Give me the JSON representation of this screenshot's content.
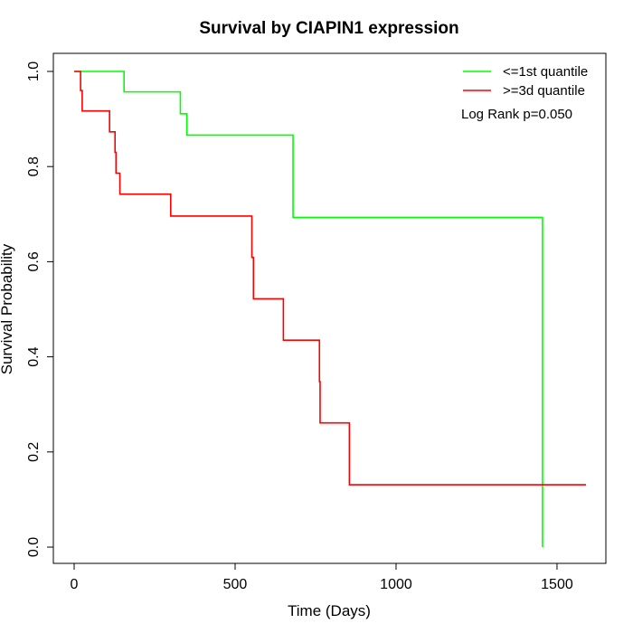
{
  "chart_data": {
    "type": "line",
    "title": "Survival by CIAPIN1 expression",
    "xlabel": "Time (Days)",
    "ylabel": "Survival Probability",
    "xlim": [
      0,
      1590
    ],
    "ylim": [
      0,
      1.0
    ],
    "x_ticks": [
      0,
      500,
      1000,
      1500
    ],
    "y_ticks": [
      0.0,
      0.2,
      0.4,
      0.6,
      0.8,
      1.0
    ],
    "x_tick_labels": [
      "0",
      "500",
      "1000",
      "1500"
    ],
    "y_tick_labels": [
      "0.0",
      "0.2",
      "0.4",
      "0.6",
      "0.8",
      "1.0"
    ],
    "grid": false,
    "legend_position": "top-right",
    "annotation": "Log Rank p=0.050",
    "series": [
      {
        "name": "<=1st quantile",
        "color": "#00ff00",
        "steps": [
          [
            0,
            1.0
          ],
          [
            155,
            0.957
          ],
          [
            330,
            0.911
          ],
          [
            350,
            0.866
          ],
          [
            680,
            0.693
          ],
          [
            1455,
            0.0
          ]
        ]
      },
      {
        "name": ">=3d quantile",
        "color": "#ff0000",
        "steps": [
          [
            0,
            1.0
          ],
          [
            20,
            0.96
          ],
          [
            25,
            0.917
          ],
          [
            110,
            0.873
          ],
          [
            127,
            0.83
          ],
          [
            130,
            0.786
          ],
          [
            142,
            0.742
          ],
          [
            300,
            0.696
          ],
          [
            552,
            0.609
          ],
          [
            557,
            0.522
          ],
          [
            650,
            0.435
          ],
          [
            762,
            0.348
          ],
          [
            764,
            0.261
          ],
          [
            855,
            0.131
          ],
          [
            1590,
            0.131
          ]
        ]
      }
    ]
  }
}
